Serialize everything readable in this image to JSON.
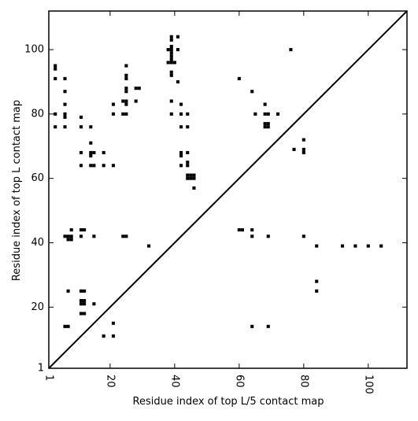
{
  "chart_data": {
    "type": "scatter",
    "title": "",
    "xlabel": "Residue index of top L/5 contact map",
    "ylabel": "Residue index of top L contact map",
    "xlim": [
      1,
      112
    ],
    "ylim": [
      1,
      112
    ],
    "xticks": [
      1,
      20,
      40,
      60,
      80,
      100
    ],
    "yticks": [
      1,
      20,
      40,
      60,
      80,
      100
    ],
    "xtick_labels": [
      "1",
      "20",
      "40",
      "60",
      "80",
      "100"
    ],
    "ytick_labels": [
      "1",
      "20",
      "40",
      "60",
      "80",
      "100"
    ],
    "grid": false,
    "diagonal_line": true,
    "marker": "square",
    "marker_color": "#000000",
    "lower_triangle": {
      "name": "top L/5 contacts",
      "points": [
        [
          6,
          14
        ],
        [
          7,
          14
        ],
        [
          7,
          25
        ],
        [
          6,
          42
        ],
        [
          7,
          42
        ],
        [
          8,
          42
        ],
        [
          7,
          41
        ],
        [
          8,
          41
        ],
        [
          8,
          44
        ],
        [
          11,
          44
        ],
        [
          12,
          44
        ],
        [
          11,
          42
        ],
        [
          15,
          42
        ],
        [
          11,
          25
        ],
        [
          12,
          25
        ],
        [
          11,
          22
        ],
        [
          12,
          22
        ],
        [
          11,
          21
        ],
        [
          12,
          21
        ],
        [
          11,
          18
        ],
        [
          12,
          18
        ],
        [
          15,
          21
        ],
        [
          18,
          11
        ],
        [
          21,
          11
        ],
        [
          21,
          15
        ],
        [
          24,
          42
        ],
        [
          25,
          42
        ],
        [
          32,
          39
        ],
        [
          60,
          44
        ],
        [
          61,
          44
        ],
        [
          64,
          44
        ],
        [
          64,
          42
        ],
        [
          64,
          14
        ],
        [
          69,
          14
        ],
        [
          69,
          42
        ],
        [
          80,
          42
        ],
        [
          84,
          39
        ],
        [
          84,
          28
        ],
        [
          84,
          25
        ],
        [
          92,
          39
        ],
        [
          96,
          39
        ],
        [
          100,
          39
        ],
        [
          104,
          39
        ]
      ]
    },
    "upper_triangle": {
      "name": "top L contacts",
      "points": [
        [
          3,
          95
        ],
        [
          3,
          94
        ],
        [
          3,
          91
        ],
        [
          3,
          80
        ],
        [
          3,
          76
        ],
        [
          6,
          91
        ],
        [
          6,
          87
        ],
        [
          6,
          83
        ],
        [
          6,
          80
        ],
        [
          6,
          79
        ],
        [
          6,
          76
        ],
        [
          11,
          79
        ],
        [
          11,
          76
        ],
        [
          11,
          68
        ],
        [
          11,
          64
        ],
        [
          14,
          76
        ],
        [
          14,
          71
        ],
        [
          14,
          68
        ],
        [
          14,
          67
        ],
        [
          14,
          64
        ],
        [
          15,
          68
        ],
        [
          15,
          64
        ],
        [
          18,
          68
        ],
        [
          18,
          64
        ],
        [
          21,
          83
        ],
        [
          21,
          80
        ],
        [
          21,
          64
        ],
        [
          24,
          84
        ],
        [
          25,
          84
        ],
        [
          25,
          83
        ],
        [
          24,
          80
        ],
        [
          25,
          80
        ],
        [
          25,
          95
        ],
        [
          25,
          92
        ],
        [
          25,
          91
        ],
        [
          25,
          88
        ],
        [
          25,
          87
        ],
        [
          28,
          88
        ],
        [
          29,
          88
        ],
        [
          28,
          84
        ],
        [
          38,
          100
        ],
        [
          39,
          100
        ],
        [
          39,
          104
        ],
        [
          39,
          103
        ],
        [
          39,
          101
        ],
        [
          39,
          99
        ],
        [
          39,
          98
        ],
        [
          38,
          96
        ],
        [
          39,
          96
        ],
        [
          40,
          96
        ],
        [
          39,
          97
        ],
        [
          39,
          93
        ],
        [
          39,
          92
        ],
        [
          39,
          84
        ],
        [
          39,
          80
        ],
        [
          41,
          104
        ],
        [
          41,
          100
        ],
        [
          41,
          90
        ],
        [
          42,
          83
        ],
        [
          42,
          80
        ],
        [
          42,
          76
        ],
        [
          42,
          68
        ],
        [
          42,
          67
        ],
        [
          42,
          64
        ],
        [
          44,
          80
        ],
        [
          44,
          76
        ],
        [
          44,
          68
        ],
        [
          44,
          65
        ],
        [
          44,
          64
        ],
        [
          44,
          61
        ],
        [
          45,
          61
        ],
        [
          46,
          61
        ],
        [
          44,
          60
        ],
        [
          45,
          60
        ],
        [
          46,
          60
        ],
        [
          46,
          57
        ],
        [
          60,
          91
        ],
        [
          64,
          87
        ],
        [
          65,
          80
        ],
        [
          68,
          83
        ],
        [
          68,
          80
        ],
        [
          69,
          80
        ],
        [
          68,
          77
        ],
        [
          68,
          76
        ],
        [
          69,
          76
        ],
        [
          69,
          77
        ],
        [
          72,
          80
        ],
        [
          76,
          100
        ],
        [
          77,
          69
        ],
        [
          80,
          72
        ],
        [
          80,
          69
        ],
        [
          80,
          68
        ]
      ]
    }
  }
}
